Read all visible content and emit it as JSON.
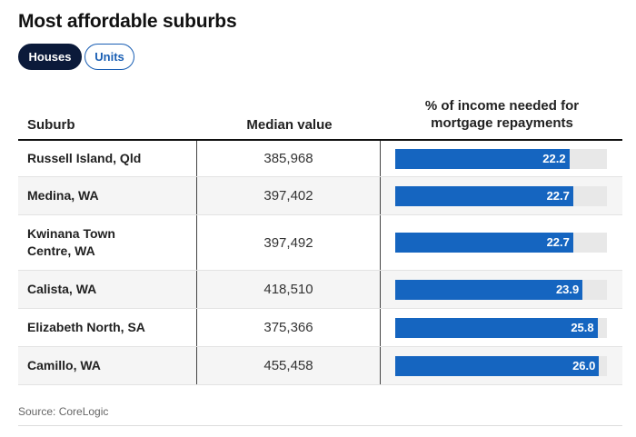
{
  "title": "Most affordable suburbs",
  "toggles": [
    {
      "label": "Houses",
      "active": true
    },
    {
      "label": "Units",
      "active": false
    }
  ],
  "table": {
    "headers": {
      "suburb": "Suburb",
      "median": "Median value",
      "pct_line1": "% of income needed for",
      "pct_line2": "mortgage repayments"
    },
    "bar_max": 27,
    "rows": [
      {
        "suburb": "Russell Island, Qld",
        "median": "385,968",
        "pct": 22.2,
        "pct_label": "22.2"
      },
      {
        "suburb": "Medina, WA",
        "median": "397,402",
        "pct": 22.7,
        "pct_label": "22.7"
      },
      {
        "suburb": "Kwinana Town Centre, WA",
        "median": "397,492",
        "pct": 22.7,
        "pct_label": "22.7"
      },
      {
        "suburb": "Calista, WA",
        "median": "418,510",
        "pct": 23.9,
        "pct_label": "23.9"
      },
      {
        "suburb": "Elizabeth North, SA",
        "median": "375,366",
        "pct": 25.8,
        "pct_label": "25.8"
      },
      {
        "suburb": "Camillo, WA",
        "median": "455,458",
        "pct": 26.0,
        "pct_label": "26.0"
      }
    ]
  },
  "source": "Source: CoreLogic",
  "colors": {
    "bar": "#1565c0",
    "track": "#e8e8e8",
    "active_toggle": "#0b1a3a",
    "inactive_toggle": "#1a5fb4"
  }
}
